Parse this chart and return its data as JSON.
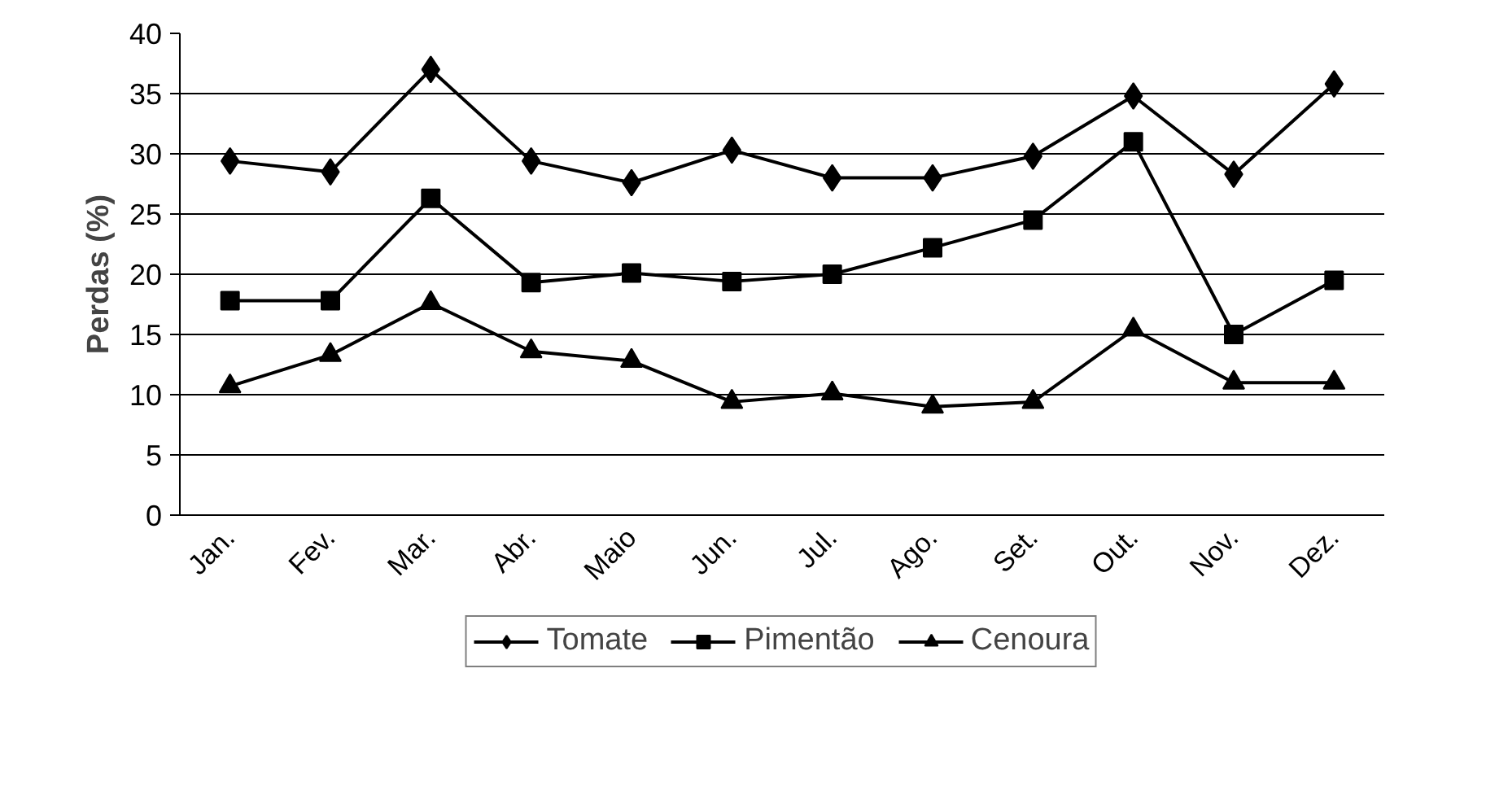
{
  "chart_data": {
    "type": "line",
    "ylabel": "Perdas (%)",
    "categories": [
      "Jan.",
      "Fev.",
      "Mar.",
      "Abr.",
      "Maio",
      "Jun.",
      "Jul.",
      "Ago.",
      "Set.",
      "Out.",
      "Nov.",
      "Dez."
    ],
    "series": [
      {
        "name": "Tomate",
        "color": "#000000",
        "marker": "diamond",
        "values": [
          29.4,
          28.5,
          37,
          29.4,
          27.6,
          30.3,
          28,
          28,
          29.8,
          34.8,
          28.3,
          35.8
        ]
      },
      {
        "name": "Pimentão",
        "color": "#000000",
        "marker": "square",
        "values": [
          17.8,
          17.8,
          26.3,
          19.3,
          20.1,
          19.4,
          20,
          22.2,
          24.5,
          31,
          15,
          19.5
        ]
      },
      {
        "name": "Cenoura",
        "color": "#000000",
        "marker": "triangle",
        "values": [
          10.7,
          13.3,
          17.6,
          13.6,
          12.8,
          9.4,
          10.1,
          9,
          9.4,
          15.4,
          11,
          11
        ]
      }
    ],
    "ylim": [
      0,
      40
    ],
    "yticks": [
      0,
      5,
      10,
      15,
      20,
      25,
      30,
      35,
      40
    ],
    "grid": "y",
    "legend": "bottom",
    "line_style": "solid"
  }
}
